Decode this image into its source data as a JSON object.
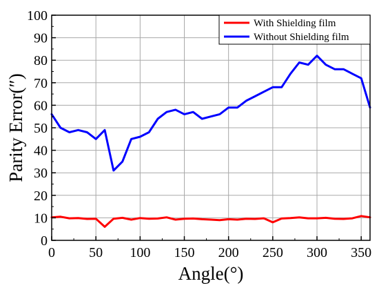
{
  "chart_data": {
    "type": "line",
    "title": "",
    "xlabel": "Angle(°)",
    "ylabel": "Parity Error(″)",
    "xlim": [
      0,
      360
    ],
    "ylim": [
      0,
      100
    ],
    "x_ticks": [
      "0",
      "50",
      "100",
      "150",
      "200",
      "250",
      "300",
      "350"
    ],
    "y_ticks": [
      "0",
      "10",
      "20",
      "30",
      "40",
      "50",
      "60",
      "70",
      "80",
      "90",
      "100"
    ],
    "grid": true,
    "legend_position": "top-right",
    "series": [
      {
        "name": "With Shielding film",
        "color": "#ff0000",
        "x": [
          0,
          10,
          20,
          30,
          40,
          50,
          60,
          70,
          80,
          90,
          100,
          110,
          120,
          130,
          140,
          150,
          160,
          170,
          180,
          190,
          200,
          210,
          220,
          230,
          240,
          250,
          260,
          270,
          280,
          290,
          300,
          310,
          320,
          330,
          340,
          350,
          360
        ],
        "y": [
          10.2,
          10.5,
          9.8,
          9.9,
          9.5,
          9.6,
          6.0,
          9.6,
          10.0,
          9.2,
          9.9,
          9.6,
          9.7,
          10.2,
          9.2,
          9.6,
          9.7,
          9.4,
          9.2,
          9.0,
          9.4,
          9.2,
          9.6,
          9.5,
          9.8,
          8.0,
          9.7,
          9.9,
          10.2,
          9.8,
          9.8,
          10.0,
          9.6,
          9.5,
          9.8,
          10.8,
          10.2
        ]
      },
      {
        "name": "Without Shielding film",
        "color": "#0000ff",
        "x": [
          0,
          10,
          20,
          30,
          40,
          50,
          60,
          70,
          80,
          90,
          100,
          110,
          120,
          130,
          140,
          150,
          160,
          170,
          180,
          190,
          200,
          210,
          220,
          230,
          240,
          250,
          260,
          270,
          280,
          290,
          300,
          310,
          320,
          330,
          340,
          350,
          360
        ],
        "y": [
          56,
          50,
          48,
          49,
          48,
          45,
          49,
          31,
          35,
          45,
          46,
          48,
          54,
          57,
          58,
          56,
          57,
          54,
          55,
          56,
          59,
          59,
          62,
          64,
          66,
          68,
          68,
          74,
          79,
          78,
          82,
          78,
          76,
          76,
          74,
          72,
          59
        ]
      }
    ]
  }
}
